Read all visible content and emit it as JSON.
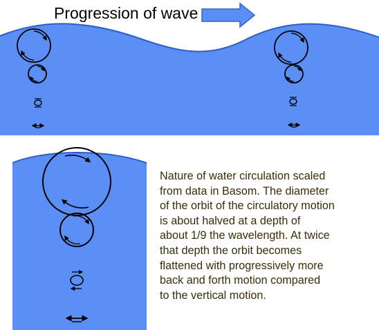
{
  "title": "Progression of wave",
  "colors": {
    "water": "#5b8ff5",
    "water_edge": "#2a5fc9",
    "arrow_fill": "#5b8ff5",
    "arrow_stroke": "#2f63c8",
    "caption_text": "#3a2e08",
    "orbit_line": "#000000"
  },
  "caption_lines": [
    "Nature of water circulation scaled",
    "from data in Basom. The diameter",
    "of the orbit of the circulatory motion",
    "is about halved at a depth of",
    "about 1/9 the wavelength. At twice",
    "that depth the orbit becomes",
    "flattened with progressively more",
    "back and forth motion compared",
    "to the vertical motion."
  ]
}
